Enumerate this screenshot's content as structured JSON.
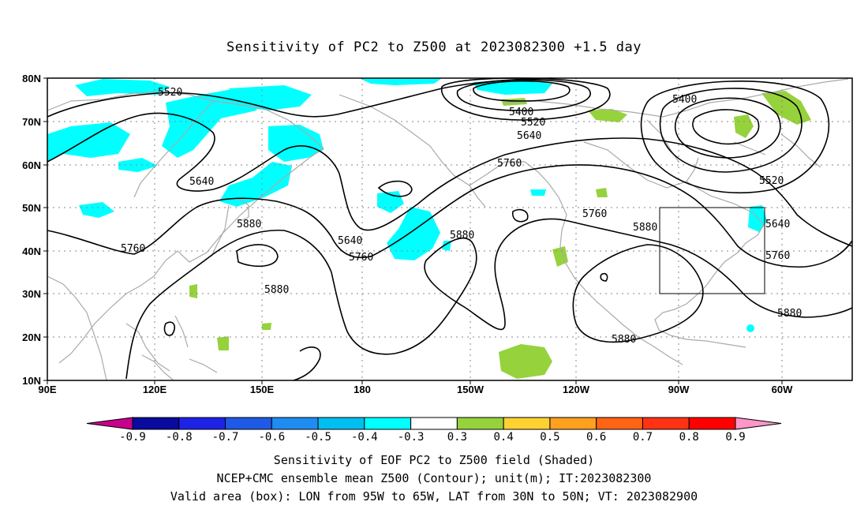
{
  "title": "Sensitivity of PC2 to Z500 at 2023082300 +1.5 day",
  "map": {
    "lat_labels": [
      "80N",
      "70N",
      "60N",
      "50N",
      "40N",
      "30N",
      "20N",
      "10N"
    ],
    "lon_labels": [
      "90E",
      "120E",
      "150E",
      "180",
      "150W",
      "120W",
      "90W",
      "60W"
    ],
    "contour_labels": [
      "5520",
      "5400",
      "5520",
      "5640",
      "5760",
      "5400",
      "5520",
      "5640",
      "5760",
      "5880",
      "5640",
      "5760",
      "5880",
      "5760",
      "5640",
      "5760",
      "5880",
      "5880",
      "5880",
      "5880"
    ],
    "valid_box": {
      "lon_from": "95W",
      "lon_to": "65W",
      "lat_from": "30N",
      "lat_to": "50N"
    }
  },
  "colorbar": {
    "labels": [
      "-0.9",
      "-0.8",
      "-0.7",
      "-0.6",
      "-0.5",
      "-0.4",
      "-0.3",
      "0.3",
      "0.4",
      "0.5",
      "0.6",
      "0.7",
      "0.8",
      "0.9"
    ],
    "colors": [
      "#c8008c",
      "#0a0a9c",
      "#1e22e6",
      "#1e5ae6",
      "#1e8cf0",
      "#00bef0",
      "#00ffff",
      "#ffffff",
      "#96d23c",
      "#ffd232",
      "#ffa01e",
      "#ff6414",
      "#ff3214",
      "#ff0000",
      "#ff96c8"
    ]
  },
  "caption": {
    "line1": "Sensitivity of EOF PC2 to Z500 field (Shaded)",
    "line2": "NCEP+CMC ensemble mean Z500 (Contour); unit(m); IT:2023082300",
    "line3": "Valid area (box): LON from 95W to 65W, LAT from 30N to 50N; VT: 2023082900"
  },
  "colors": {
    "cyan_shade": "#00ffff",
    "green_shade": "#96d23c",
    "coast": "#aaaaaa",
    "contour": "#000000"
  }
}
